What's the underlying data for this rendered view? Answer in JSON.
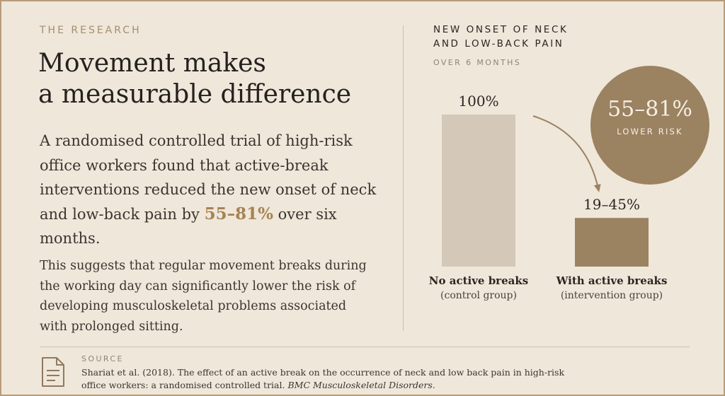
{
  "eyebrow": "THE RESEARCH",
  "headline": {
    "line1": "Movement makes",
    "line2": "a measurable difference"
  },
  "lead": {
    "text_before": "A randomised controlled trial of high-risk office workers found that active-break interventions reduced the new onset of neck and low-back pain by ",
    "highlight": "55–81%",
    "text_after": " over six months."
  },
  "paragraph": "This suggests that regular movement breaks during the working day can significantly lower the risk of developing musculoskeletal problems associated with prolonged sitting.",
  "badge": {
    "value": "55–81%",
    "label": "LOWER RISK"
  },
  "source": {
    "label": "SOURCE",
    "citation": "Shariat et al. (2018). The effect of an active break on the occurrence of neck and low back pain in high-risk office workers: a randomised controlled trial. ",
    "journal": "BMC Musculoskeletal Disorders."
  },
  "colors": {
    "accent": "#a68354",
    "bar_control": "#d4c8b8",
    "bar_intervention": "#9b8260",
    "badge": "#9b8260"
  },
  "chart_data": {
    "type": "bar",
    "title": "NEW ONSET OF NECK AND LOW-BACK PAIN",
    "title_lines": [
      "NEW ONSET OF NECK",
      "AND LOW-BACK PAIN"
    ],
    "subtitle": "OVER 6 MONTHS",
    "categories": [
      "No active breaks",
      "With active breaks"
    ],
    "category_sublabels": [
      "(control group)",
      "(intervention group)"
    ],
    "values": [
      100,
      32
    ],
    "value_labels": [
      "100%",
      "19–45%"
    ],
    "ylim": [
      0,
      100
    ],
    "grid": false,
    "legend": "none",
    "xlabel": "",
    "ylabel": ""
  }
}
